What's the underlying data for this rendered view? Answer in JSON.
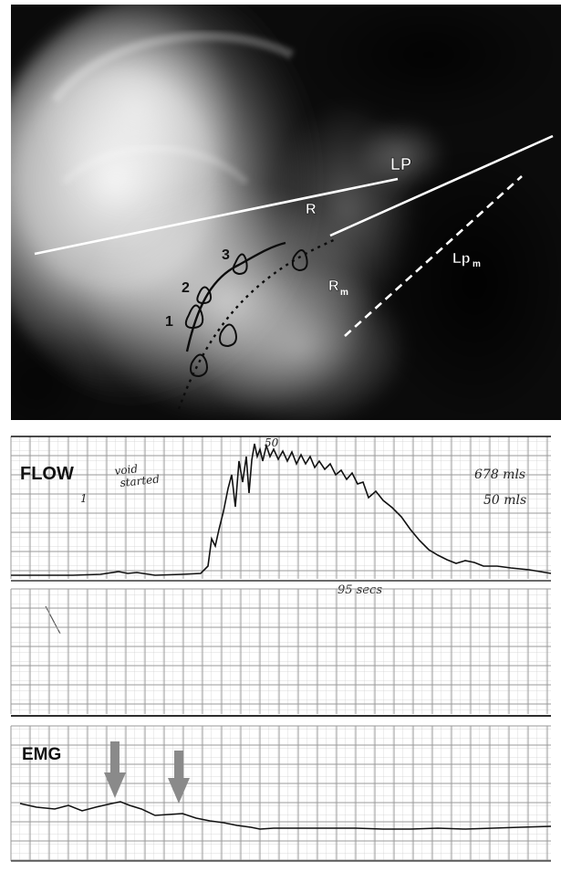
{
  "xray": {
    "labels": {
      "lp": "LP",
      "r": "R",
      "rm": "R",
      "rm_sub": "m",
      "lpm": "Lp",
      "lpm_sub": "m",
      "n1": "1",
      "n2": "2",
      "n3": "3"
    }
  },
  "flow_panel": {
    "label": "FLOW",
    "note_void_line1": "void",
    "note_void_line2": "started",
    "note_peak": "50",
    "note_volume": "678 mls",
    "note_scale": "50 mls",
    "note_time": "95 secs",
    "tick_mark": "1"
  },
  "emg_panel": {
    "label": "EMG"
  },
  "colors": {
    "xray_dark": "#0a0a0a",
    "xray_light": "#e8e8e8",
    "grid": "#b9b9b9",
    "trace": "#111111",
    "arrow": "#8a8a8a"
  }
}
